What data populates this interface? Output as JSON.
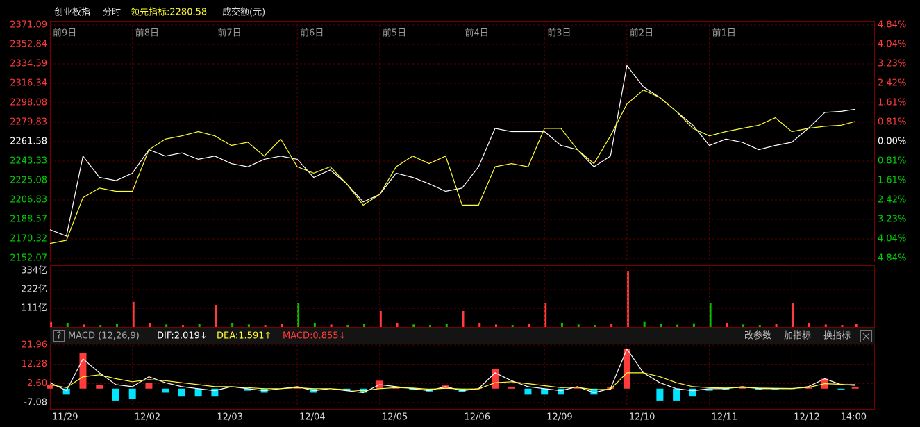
{
  "chart_data": [
    {
      "type": "line",
      "mode": "分时",
      "x": [
        0,
        0.2,
        0.4,
        0.6,
        0.8,
        1,
        1.2,
        1.4,
        1.6,
        1.8,
        2,
        2.2,
        2.4,
        2.6,
        2.8,
        3,
        3.2,
        3.4,
        3.6,
        3.8,
        4,
        4.2,
        4.4,
        4.6,
        4.8,
        5,
        5.2,
        5.4,
        5.6,
        5.8,
        6,
        6.2,
        6.4,
        6.6,
        6.8,
        7,
        7.2,
        7.4,
        7.6,
        7.8,
        8,
        8.2,
        8.4,
        8.6,
        8.8,
        9,
        9.2,
        9.4,
        9.6,
        9.77
      ],
      "xlim": [
        0,
        10
      ],
      "ylim": [
        2152.07,
        2371.09
      ],
      "yticks": [
        2371.09,
        2352.84,
        2334.59,
        2316.34,
        2298.08,
        2279.83,
        2261.58,
        2243.33,
        2225.08,
        2206.83,
        2188.57,
        2170.32,
        2152.07
      ],
      "y2lim": [
        -4.84,
        4.84
      ],
      "y2ticks": [
        {
          "value": 4.84,
          "label": "4.84%"
        },
        {
          "value": 4.04,
          "label": "4.04%"
        },
        {
          "value": 3.23,
          "label": "3.23%"
        },
        {
          "value": 2.42,
          "label": "2.42%"
        },
        {
          "value": 1.61,
          "label": "1.61%"
        },
        {
          "value": 0.81,
          "label": "0.81%"
        },
        {
          "value": 0,
          "label": "0.00%"
        },
        {
          "value": -0.81,
          "label": "0.81%"
        },
        {
          "value": -1.61,
          "label": "1.61%"
        },
        {
          "value": -2.42,
          "label": "2.42%"
        },
        {
          "value": -3.23,
          "label": "3.23%"
        },
        {
          "value": -4.04,
          "label": "4.04%"
        },
        {
          "value": -4.84,
          "label": "4.84%"
        }
      ],
      "x2ticks": [
        {
          "value": 0,
          "label": "前9日"
        },
        {
          "value": 1,
          "label": "前8日"
        },
        {
          "value": 2,
          "label": "前7日"
        },
        {
          "value": 3,
          "label": "前6日"
        },
        {
          "value": 4,
          "label": "前5日"
        },
        {
          "value": 5,
          "label": "前4日"
        },
        {
          "value": 6,
          "label": "前3日"
        },
        {
          "value": 7,
          "label": "前2日"
        },
        {
          "value": 8,
          "label": "前1日"
        }
      ],
      "grid": true,
      "series": [
        {
          "name": "创业板指",
          "color": "#ffffff",
          "values": [
            2179,
            2173,
            2248,
            2228,
            2225,
            2232,
            2254,
            2248,
            2251,
            2245,
            2248,
            2241,
            2238,
            2245,
            2248,
            2245,
            2228,
            2235,
            2222,
            2205,
            2212,
            2232,
            2228,
            2222,
            2215,
            2218,
            2238,
            2274,
            2271,
            2271,
            2271,
            2258,
            2254,
            2238,
            2248,
            2333,
            2313,
            2303,
            2290,
            2277,
            2258,
            2264,
            2261,
            2254,
            2258,
            2261,
            2274,
            2289,
            2290,
            2292
          ]
        },
        {
          "name": "领先指标:2280.58",
          "color": "#ffff33",
          "values": [
            2166,
            2169,
            2209,
            2218,
            2215,
            2215,
            2254,
            2264,
            2267,
            2271,
            2267,
            2258,
            2261,
            2248,
            2264,
            2238,
            2232,
            2238,
            2222,
            2202,
            2212,
            2238,
            2248,
            2241,
            2248,
            2202,
            2202,
            2238,
            2241,
            2238,
            2274,
            2274,
            2254,
            2241,
            2267,
            2297,
            2310,
            2303,
            2290,
            2274,
            2267,
            2271,
            2274,
            2277,
            2284,
            2271,
            2274,
            2276,
            2277,
            2280.58
          ]
        }
      ]
    },
    {
      "type": "bar",
      "title": "成交额(元)",
      "ylim": [
        0,
        334
      ],
      "yticks": [
        {
          "value": 334,
          "label": "334亿"
        },
        {
          "value": 222,
          "label": "222亿"
        },
        {
          "value": 111,
          "label": "111亿"
        }
      ],
      "colors": [
        "#ff3b3b",
        "#00c400"
      ],
      "values": [
        30,
        25,
        15,
        12,
        20,
        149,
        25,
        15,
        12,
        20,
        128,
        25,
        15,
        12,
        20,
        140,
        25,
        15,
        12,
        20,
        95,
        25,
        15,
        12,
        20,
        95,
        25,
        15,
        12,
        20,
        140,
        25,
        15,
        12,
        20,
        334,
        30,
        18,
        14,
        22,
        140,
        25,
        15,
        12,
        20,
        140,
        25,
        15,
        12,
        20
      ]
    },
    {
      "type": "macd",
      "title": "MACD (12,26,9)",
      "help": "?",
      "toolbar": [
        "改参数",
        "加指标",
        "换指标"
      ],
      "xlim": [
        0,
        10
      ],
      "xticks": [
        {
          "value": 0,
          "label": "11/29"
        },
        {
          "value": 1,
          "label": "12/02"
        },
        {
          "value": 2,
          "label": "12/03"
        },
        {
          "value": 3,
          "label": "12/04"
        },
        {
          "value": 4,
          "label": "12/05"
        },
        {
          "value": 5,
          "label": "12/06"
        },
        {
          "value": 6,
          "label": "12/09"
        },
        {
          "value": 7,
          "label": "12/10"
        },
        {
          "value": 8,
          "label": "12/11"
        },
        {
          "value": 9,
          "label": "12/12"
        },
        {
          "value": 9.75,
          "label": "14:00"
        }
      ],
      "ylim": [
        -7.08,
        21.96
      ],
      "yticks": [
        21.96,
        12.28,
        {
          "value": 2.6,
          "label": "2.60"
        },
        -7.08
      ],
      "grid": true,
      "series": [
        {
          "name": "DIF:2.019↓",
          "color": "#ffffff",
          "values": [
            3,
            -1,
            15,
            8,
            2,
            1,
            6,
            3,
            1,
            0,
            -1,
            1,
            0,
            -1,
            0,
            1,
            -1,
            0,
            -1,
            -2,
            2,
            1,
            0,
            -1,
            1,
            -1,
            0,
            8,
            4,
            1,
            0,
            -1,
            1,
            -2,
            0,
            20,
            8,
            3,
            0,
            -1,
            0,
            0,
            1,
            0,
            0,
            0,
            1,
            5,
            2,
            2.019
          ]
        },
        {
          "name": "DEA:1.591↑",
          "color": "#ffff33",
          "values": [
            2,
            0.5,
            6,
            7,
            5,
            3.5,
            4.5,
            4,
            3,
            2,
            1,
            1,
            0.5,
            0,
            0,
            0.5,
            0,
            0,
            -0.5,
            -1,
            0,
            0.5,
            0.3,
            -0.3,
            0.2,
            -0.2,
            -0.1,
            3,
            3.5,
            2.5,
            1.5,
            0.5,
            0.7,
            -0.5,
            -0.3,
            8,
            8,
            6,
            3,
            1,
            0.5,
            0.3,
            0.6,
            0.3,
            0.2,
            0.1,
            0.6,
            2.5,
            2.2,
            1.591
          ]
        },
        {
          "name": "MACD:0.855↓",
          "color": "#ff3b3b",
          "negative_color": "#00e5ff",
          "bar": true,
          "values": [
            2,
            -3,
            18,
            2,
            -6,
            -5,
            3,
            -2,
            -4,
            -4,
            -4,
            0,
            -1,
            -2,
            0,
            1,
            -2,
            0,
            -1,
            -2,
            4,
            1,
            -0.6,
            -1.4,
            1.6,
            -1.6,
            0.2,
            10,
            1,
            -3,
            -3,
            -3,
            0.6,
            -3,
            0.6,
            20,
            0,
            -6,
            -6,
            -4,
            -1,
            -0.6,
            0.8,
            -0.6,
            -0.4,
            -0.2,
            0.8,
            5,
            -0.4,
            0.855
          ]
        }
      ]
    }
  ]
}
